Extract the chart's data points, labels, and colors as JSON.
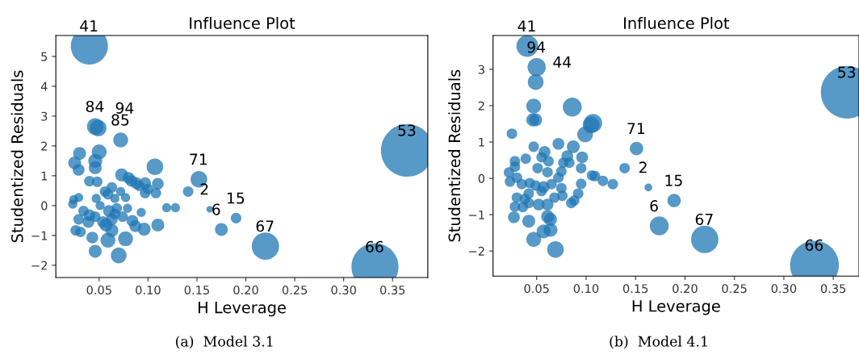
{
  "chart_data": [
    {
      "type": "bubble",
      "title": "Influence Plot",
      "xlabel": "H Leverage",
      "ylabel": "Studentized Residuals",
      "color": "#1f77b4",
      "x": [
        0.04,
        0.046,
        0.049,
        0.072,
        0.152,
        0.163,
        0.175,
        0.19,
        0.22,
        0.332,
        0.365,
        0.03,
        0.025,
        0.029,
        0.05,
        0.046,
        0.046,
        0.04,
        0.048,
        0.073,
        0.107,
        0.083,
        0.088,
        0.097,
        0.11,
        0.097,
        0.108,
        0.141,
        0.119,
        0.128,
        0.11,
        0.096,
        0.093,
        0.079,
        0.077,
        0.07,
        0.046,
        0.059,
        0.043,
        0.026,
        0.031,
        0.029,
        0.034,
        0.04,
        0.039,
        0.046,
        0.023,
        0.024,
        0.029,
        0.047,
        0.056,
        0.063,
        0.059,
        0.072,
        0.077,
        0.066,
        0.051,
        0.06,
        0.068,
        0.074,
        0.063,
        0.057,
        0.063,
        0.054,
        0.066,
        0.084,
        0.087,
        0.08,
        0.091,
        0.1
      ],
      "values": [
        5.35,
        2.65,
        2.6,
        2.2,
        0.88,
        -0.12,
        -0.8,
        -0.42,
        -1.36,
        -2.05,
        1.85,
        1.75,
        1.43,
        1.2,
        1.8,
        1.5,
        1.27,
        0.82,
        0.8,
        1.03,
        1.3,
        0.83,
        0.75,
        0.75,
        0.73,
        0.42,
        0.42,
        0.47,
        -0.07,
        -0.07,
        -0.65,
        -0.79,
        -0.23,
        -0.09,
        -1.11,
        -1.67,
        -1.53,
        -1.16,
        -1.07,
        -0.83,
        -0.88,
        -0.46,
        -0.18,
        -0.32,
        -0.55,
        -0.37,
        0.05,
        0.2,
        0.27,
        0.24,
        0.47,
        0.61,
        0.38,
        0.47,
        0.27,
        0.24,
        0.0,
        -0.18,
        -0.09,
        -0.37,
        -0.46,
        -0.65,
        -0.83,
        -0.55,
        -0.28,
        -0.51,
        -0.69,
        0.93,
        0.66,
        0.56
      ],
      "sizes": [
        0.5,
        0.1,
        0.1,
        0.08,
        0.1,
        0.016,
        0.06,
        0.04,
        0.27,
        0.8,
        1,
        0.06,
        0.06,
        0.05,
        0.08,
        0.07,
        0.06,
        0.04,
        0.04,
        0.06,
        0.1,
        0.05,
        0.05,
        0.05,
        0.05,
        0.04,
        0.04,
        0.04,
        0.03,
        0.03,
        0.06,
        0.06,
        0.03,
        0.03,
        0.08,
        0.09,
        0.06,
        0.08,
        0.05,
        0.04,
        0.04,
        0.04,
        0.04,
        0.05,
        0.05,
        0.04,
        0.03,
        0.03,
        0.03,
        0.03,
        0.04,
        0.04,
        0.04,
        0.03,
        0.03,
        0.03,
        0.03,
        0.05,
        0.04,
        0.04,
        0.05,
        0.06,
        0.06,
        0.05,
        0.04,
        0.05,
        0.05,
        0.05,
        0.04,
        0.04
      ],
      "xlim": [
        0.0057,
        0.386
      ],
      "ylim": [
        -2.41,
        5.7
      ],
      "xticks": [
        0.05,
        {
          "value": 0.1,
          "label": "0.10"
        },
        0.15,
        {
          "value": 0.2,
          "label": "0.20"
        },
        0.25,
        {
          "value": 0.3,
          "label": "0.30"
        },
        0.35
      ],
      "yticks": [
        -2,
        -1,
        0,
        1,
        2,
        3,
        4,
        5
      ],
      "annotations": [
        {
          "text": "41",
          "x": 0.04,
          "y": 5.35
        },
        {
          "text": "84",
          "x": 0.046,
          "y": 2.65
        },
        {
          "text": "94",
          "x": 0.049,
          "y": 2.6
        },
        {
          "text": "85",
          "x": 0.072,
          "y": 2.2
        },
        {
          "text": "71",
          "x": 0.152,
          "y": 0.88
        },
        {
          "text": "2",
          "x": 0.163,
          "y": -0.12
        },
        {
          "text": "6",
          "x": 0.175,
          "y": -0.8
        },
        {
          "text": "15",
          "x": 0.19,
          "y": -0.42
        },
        {
          "text": "67",
          "x": 0.22,
          "y": -1.36
        },
        {
          "text": "66",
          "x": 0.332,
          "y": -2.05
        },
        {
          "text": "53",
          "x": 0.365,
          "y": 1.85
        },
        "(a)  Model 3.1"
      ]
    },
    {
      "type": "bubble",
      "title": "Influence Plot",
      "xlabel": "H Leverage",
      "ylabel": "Studentized Residuals",
      "color": "#1f77b4",
      "x": [
        0.0405,
        0.05,
        0.049,
        0.151,
        0.163,
        0.174,
        0.189,
        0.22,
        0.331,
        0.364,
        0.086,
        0.047,
        0.046,
        0.049,
        0.107,
        0.105,
        0.099,
        0.025,
        0.047,
        0.072,
        0.087,
        0.058,
        0.055,
        0.081,
        0.096,
        0.039,
        0.028,
        0.062,
        0.077,
        0.083,
        0.095,
        0.028,
        0.051,
        0.061,
        0.075,
        0.022,
        0.023,
        0.03,
        0.072,
        0.106,
        0.109,
        0.117,
        0.127,
        0.139,
        0.095,
        0.035,
        0.043,
        0.049,
        0.057,
        0.065,
        0.075,
        0.03,
        0.038,
        0.042,
        0.028,
        0.036,
        0.052,
        0.061,
        0.068,
        0.076,
        0.092,
        0.088,
        0.085,
        0.061,
        0.064,
        0.027,
        0.042,
        0.057,
        0.064,
        0.047,
        0.069,
        0.042,
        0.055
      ],
      "values": [
        3.64,
        3.06,
        2.65,
        0.82,
        -0.25,
        -1.31,
        -0.61,
        -1.68,
        -2.39,
        2.37,
        1.96,
        1.99,
        1.61,
        1.61,
        1.52,
        1.47,
        1.21,
        1.23,
        0.87,
        0.95,
        0.87,
        0.73,
        0.58,
        0.61,
        0.58,
        0.54,
        0.47,
        0.47,
        0.43,
        0.43,
        0.28,
        0.32,
        0.28,
        0.17,
        0.19,
        0.16,
        -0.09,
        0.02,
        0.02,
        0.08,
        0.06,
        -0.07,
        -0.16,
        0.28,
        -0.15,
        -0.16,
        -0.13,
        -0.2,
        -0.24,
        -0.16,
        -0.27,
        -0.53,
        -0.57,
        -0.68,
        -0.78,
        -0.79,
        -0.72,
        -0.72,
        -0.53,
        -0.48,
        -0.42,
        -0.61,
        -0.68,
        -1.05,
        -1.13,
        -1.07,
        -1.18,
        -1.46,
        -1.42,
        -1.68,
        -1.96,
        -0.42,
        -0.35
      ],
      "sizes": [
        0.17,
        0.12,
        0.09,
        0.065,
        0.022,
        0.13,
        0.065,
        0.27,
        0.86,
        1,
        0.13,
        0.08,
        0.06,
        0.06,
        0.12,
        0.1,
        0.09,
        0.04,
        0.04,
        0.05,
        0.06,
        0.05,
        0.04,
        0.05,
        0.05,
        0.04,
        0.04,
        0.04,
        0.04,
        0.04,
        0.04,
        0.04,
        0.04,
        0.04,
        0.04,
        0.04,
        0.04,
        0.04,
        0.04,
        0.04,
        0.04,
        0.04,
        0.04,
        0.04,
        0.04,
        0.04,
        0.04,
        0.04,
        0.05,
        0.04,
        0.04,
        0.04,
        0.04,
        0.04,
        0.04,
        0.04,
        0.05,
        0.05,
        0.04,
        0.04,
        0.04,
        0.04,
        0.04,
        0.06,
        0.06,
        0.05,
        0.06,
        0.07,
        0.07,
        0.08,
        0.1,
        0.04,
        0.04
      ],
      "xlim": [
        0.0059,
        0.376
      ],
      "ylim": [
        -2.69,
        3.93
      ],
      "xticks": [
        0.05,
        {
          "value": 0.1,
          "label": "0.10"
        },
        0.15,
        {
          "value": 0.2,
          "label": "0.20"
        },
        0.25,
        {
          "value": 0.3,
          "label": "0.30"
        },
        0.35
      ],
      "yticks": [
        -2,
        -1,
        0,
        1,
        2,
        3
      ],
      "annotations": [
        {
          "text": "41",
          "x": 0.0405,
          "y": 3.64
        },
        {
          "text": "94",
          "x": 0.05,
          "y": 3.06
        },
        {
          "text": "44",
          "x": 0.049,
          "y": 2.65
        },
        {
          "text": "71",
          "x": 0.151,
          "y": 0.82
        },
        {
          "text": "2",
          "x": 0.163,
          "y": -0.25
        },
        {
          "text": "6",
          "x": 0.174,
          "y": -1.31
        },
        {
          "text": "15",
          "x": 0.189,
          "y": -0.61
        },
        {
          "text": "67",
          "x": 0.22,
          "y": -1.68
        },
        {
          "text": "66",
          "x": 0.331,
          "y": -2.39
        },
        {
          "text": "53",
          "x": 0.364,
          "y": 2.37
        },
        "(b)  Model 4.1"
      ]
    }
  ]
}
